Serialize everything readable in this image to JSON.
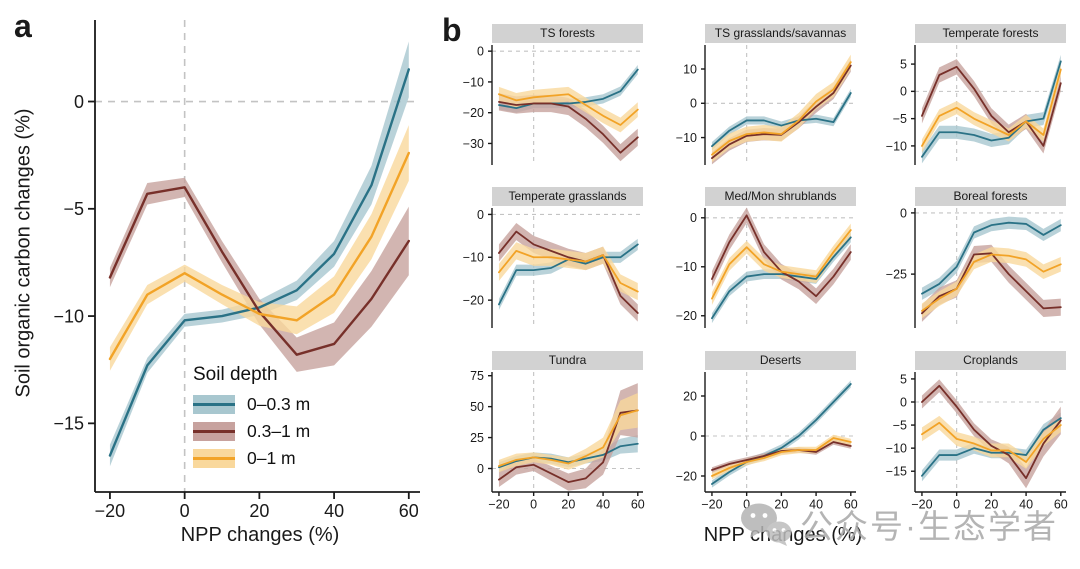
{
  "panels": {
    "a": {
      "label": "a",
      "xlabel": "NPP changes (%)",
      "ylabel": "Soil organic carbon changes (%)"
    },
    "b": {
      "label": "b",
      "xlabel": "NPP changes (%)"
    }
  },
  "legend": {
    "title": "Soil depth",
    "entries": [
      {
        "label": "0–0.3 m"
      },
      {
        "label": "0.3–1 m"
      },
      {
        "label": "0–1 m"
      }
    ]
  },
  "watermark": {
    "icon": "wechat-chat-bubbles-icon",
    "text": "公众号·生态学者",
    "color": "#a8a8a8"
  },
  "chart_data": {
    "type": "line",
    "x": [
      -20,
      -10,
      0,
      10,
      20,
      30,
      40,
      50,
      60
    ],
    "xticks": [
      -20,
      0,
      20,
      40,
      60
    ],
    "xlim": [
      -24,
      63
    ],
    "grid": "off",
    "reference_lines": {
      "x": 0,
      "y": 0,
      "style": "dashed",
      "color": "#c3c3c3"
    },
    "palette": [
      {
        "name": "0–0.3 m",
        "line": "#2a7286",
        "band": "#a8c7cf"
      },
      {
        "name": "0.3–1 m",
        "line": "#77302a",
        "band": "#c7a29e"
      },
      {
        "name": "0–1 m",
        "line": "#f2a327",
        "band": "#f9d89c"
      }
    ],
    "main": {
      "panel": "a",
      "xlabel": "NPP changes (%)",
      "ylabel": "Soil organic carbon changes (%)",
      "ylim": [
        -18.2,
        3.8
      ],
      "yticks": [
        0,
        -5,
        -10,
        -15
      ],
      "series": [
        {
          "name": "0–0.3 m",
          "values": [
            -16.5,
            -12.3,
            -10.2,
            -10.0,
            -9.6,
            -8.8,
            -7.1,
            -3.9,
            1.5
          ],
          "band": [
            0.5,
            0.35,
            0.3,
            0.3,
            0.35,
            0.45,
            0.6,
            0.9,
            1.3
          ]
        },
        {
          "name": "0.3–1 m",
          "values": [
            -8.2,
            -4.3,
            -4.0,
            -7.0,
            -9.8,
            -11.8,
            -11.3,
            -9.2,
            -6.5
          ],
          "band": [
            0.45,
            0.5,
            0.45,
            0.5,
            0.6,
            0.8,
            1.0,
            1.3,
            1.6
          ]
        },
        {
          "name": "0–1 m",
          "values": [
            -12.0,
            -9.0,
            -8.0,
            -9.0,
            -9.9,
            -10.2,
            -9.0,
            -6.3,
            -2.4
          ],
          "band": [
            0.55,
            0.45,
            0.4,
            0.45,
            0.55,
            0.65,
            0.85,
            1.05,
            1.3
          ]
        }
      ]
    },
    "small_multiples": [
      {
        "title": "TS forests",
        "ylim": [
          -37,
          2
        ],
        "yticks": [
          0,
          -10,
          -20,
          -30
        ],
        "series": [
          {
            "name": "0–0.3 m",
            "values": [
              -17.5,
              -18.5,
              -17,
              -17,
              -17,
              -16.5,
              -15.5,
              -13,
              -6
            ],
            "band": 1.5
          },
          {
            "name": "0.3–1 m",
            "values": [
              -16.5,
              -17.5,
              -17,
              -17,
              -18,
              -22,
              -27,
              -33,
              -28
            ],
            "band": 2.8
          },
          {
            "name": "0–1 m",
            "values": [
              -14,
              -16,
              -15,
              -14.5,
              -14,
              -17.5,
              -21,
              -24,
              -19
            ],
            "band": 2.4
          }
        ]
      },
      {
        "title": "TS grasslands/savannas",
        "ylim": [
          -18,
          17
        ],
        "yticks": [
          10,
          0,
          -10
        ],
        "series": [
          {
            "name": "0–0.3 m",
            "values": [
              -12.5,
              -8,
              -5,
              -5,
              -6.5,
              -5,
              -4.5,
              -5.5,
              3
            ],
            "band": 1.2
          },
          {
            "name": "0.3–1 m",
            "values": [
              -16,
              -12,
              -9.5,
              -9,
              -9.2,
              -5.5,
              -1,
              3,
              11
            ],
            "band": 1.8
          },
          {
            "name": "0–1 m",
            "values": [
              -15,
              -11,
              -9,
              -8.5,
              -9,
              -5,
              0.5,
              4,
              12
            ],
            "band": 2.2
          }
        ]
      },
      {
        "title": "Temperate forests",
        "ylim": [
          -13.5,
          8.5
        ],
        "yticks": [
          5,
          0,
          -5,
          -10
        ],
        "series": [
          {
            "name": "0–0.3 m",
            "values": [
              -12,
              -7.5,
              -7.5,
              -8,
              -9,
              -8.5,
              -5.5,
              -5,
              5.5
            ],
            "band": 1.2
          },
          {
            "name": "0.3–1 m",
            "values": [
              -4.5,
              3,
              4.5,
              0.5,
              -4.5,
              -7.5,
              -5.5,
              -10,
              1.5
            ],
            "band": 1.4
          },
          {
            "name": "0–1 m",
            "values": [
              -10,
              -4.5,
              -3,
              -5,
              -6.5,
              -8,
              -5.5,
              -8,
              4
            ],
            "band": 1.2
          }
        ]
      },
      {
        "title": "Temperate grasslands",
        "ylim": [
          -26.5,
          1.5
        ],
        "yticks": [
          0,
          -10,
          -20
        ],
        "series": [
          {
            "name": "0–0.3 m",
            "values": [
              -21,
              -13,
              -13,
              -12.5,
              -10.5,
              -11.5,
              -10,
              -10,
              -7
            ],
            "band": 1.3
          },
          {
            "name": "0.3–1 m",
            "values": [
              -9,
              -4,
              -7,
              -8.5,
              -10,
              -11,
              -9.5,
              -19,
              -23
            ],
            "band": 2.0
          },
          {
            "name": "0–1 m",
            "values": [
              -13.5,
              -8.5,
              -10,
              -10,
              -10.5,
              -11,
              -9.5,
              -16,
              -18
            ],
            "band": 2.0
          }
        ]
      },
      {
        "title": "Med/Mon shrublands",
        "ylim": [
          -22.5,
          2
        ],
        "yticks": [
          0,
          -10,
          -20
        ],
        "series": [
          {
            "name": "0–0.3 m",
            "values": [
              -20.5,
              -15,
              -12,
              -11.5,
              -11.5,
              -12,
              -12.5,
              -8,
              -4
            ],
            "band": 1.0
          },
          {
            "name": "0.3–1 m",
            "values": [
              -12.5,
              -5,
              0.5,
              -7,
              -11,
              -13,
              -16,
              -12,
              -7
            ],
            "band": 1.6
          },
          {
            "name": "0–1 m",
            "values": [
              -16.5,
              -9.5,
              -6,
              -9.5,
              -11,
              -11.5,
              -12,
              -7,
              -2.5
            ],
            "band": 1.3
          }
        ]
      },
      {
        "title": "Boreal forests",
        "ylim": [
          -47,
          2
        ],
        "yticks": [
          0,
          -25
        ],
        "series": [
          {
            "name": "0–0.3 m",
            "values": [
              -33,
              -29,
              -22,
              -8,
              -5,
              -4,
              -4.5,
              -9,
              -5
            ],
            "band": 2.5
          },
          {
            "name": "0.3–1 m",
            "values": [
              -41,
              -34,
              -31,
              -17,
              -16.5,
              -25,
              -32,
              -39,
              -38.5
            ],
            "band": 3.5
          },
          {
            "name": "0–1 m",
            "values": [
              -40,
              -35,
              -31,
              -20,
              -17,
              -17.5,
              -19,
              -24,
              -21
            ],
            "band": 3.0
          }
        ]
      },
      {
        "title": "Tundra",
        "ylim": [
          -19,
          78
        ],
        "yticks": [
          75,
          50,
          25,
          0
        ],
        "series": [
          {
            "name": "0–0.3 m",
            "values": [
              1,
              6,
              9,
              8,
              5,
              8,
              11,
              18,
              20
            ],
            "band": [
              4,
              4,
              4,
              4,
              4,
              4,
              5,
              6,
              7
            ]
          },
          {
            "name": "0.3–1 m",
            "values": [
              -9,
              1,
              3,
              -4,
              -11,
              -8,
              5,
              45,
              47
            ],
            "band": [
              6,
              6,
              5,
              6,
              7,
              8,
              10,
              18,
              22
            ]
          },
          {
            "name": "0–1 m",
            "values": [
              2,
              7,
              9,
              7,
              4,
              10,
              17,
              43,
              47
            ],
            "band": [
              5,
              5,
              4,
              4,
              5,
              6,
              8,
              12,
              14
            ]
          }
        ]
      },
      {
        "title": "Deserts",
        "ylim": [
          -28,
          32
        ],
        "yticks": [
          20,
          0,
          -20
        ],
        "series": [
          {
            "name": "0–0.3 m",
            "values": [
              -24,
              -18,
              -13,
              -10,
              -6,
              0,
              8,
              17,
              26
            ],
            "band": 1.8
          },
          {
            "name": "0.3–1 m",
            "values": [
              -17,
              -14,
              -12,
              -10,
              -7.5,
              -7,
              -8,
              -3,
              -5
            ],
            "band": 1.4
          },
          {
            "name": "0–1 m",
            "values": [
              -20,
              -16,
              -13,
              -11,
              -8,
              -7,
              -7,
              -1,
              -3
            ],
            "band": 1.6
          }
        ]
      },
      {
        "title": "Croplands",
        "ylim": [
          -19.5,
          6.5
        ],
        "yticks": [
          5,
          0,
          -5,
          -10,
          -15
        ],
        "series": [
          {
            "name": "0–0.3 m",
            "values": [
              -16,
              -11.5,
              -11.5,
              -10,
              -11,
              -11,
              -11.5,
              -6,
              -3.5
            ],
            "band": 1.2
          },
          {
            "name": "0.3–1 m",
            "values": [
              0,
              3.5,
              -1,
              -6,
              -9.5,
              -11.5,
              -16.5,
              -9,
              -4
            ],
            "band": [
              1.4,
              1.4,
              1.4,
              1.4,
              1.4,
              1.8,
              2.2,
              2.8,
              3
            ]
          },
          {
            "name": "0–1 m",
            "values": [
              -7,
              -4.5,
              -8,
              -9,
              -10.5,
              -10.5,
              -13,
              -8,
              -5
            ],
            "band": 1.5
          }
        ]
      }
    ]
  }
}
